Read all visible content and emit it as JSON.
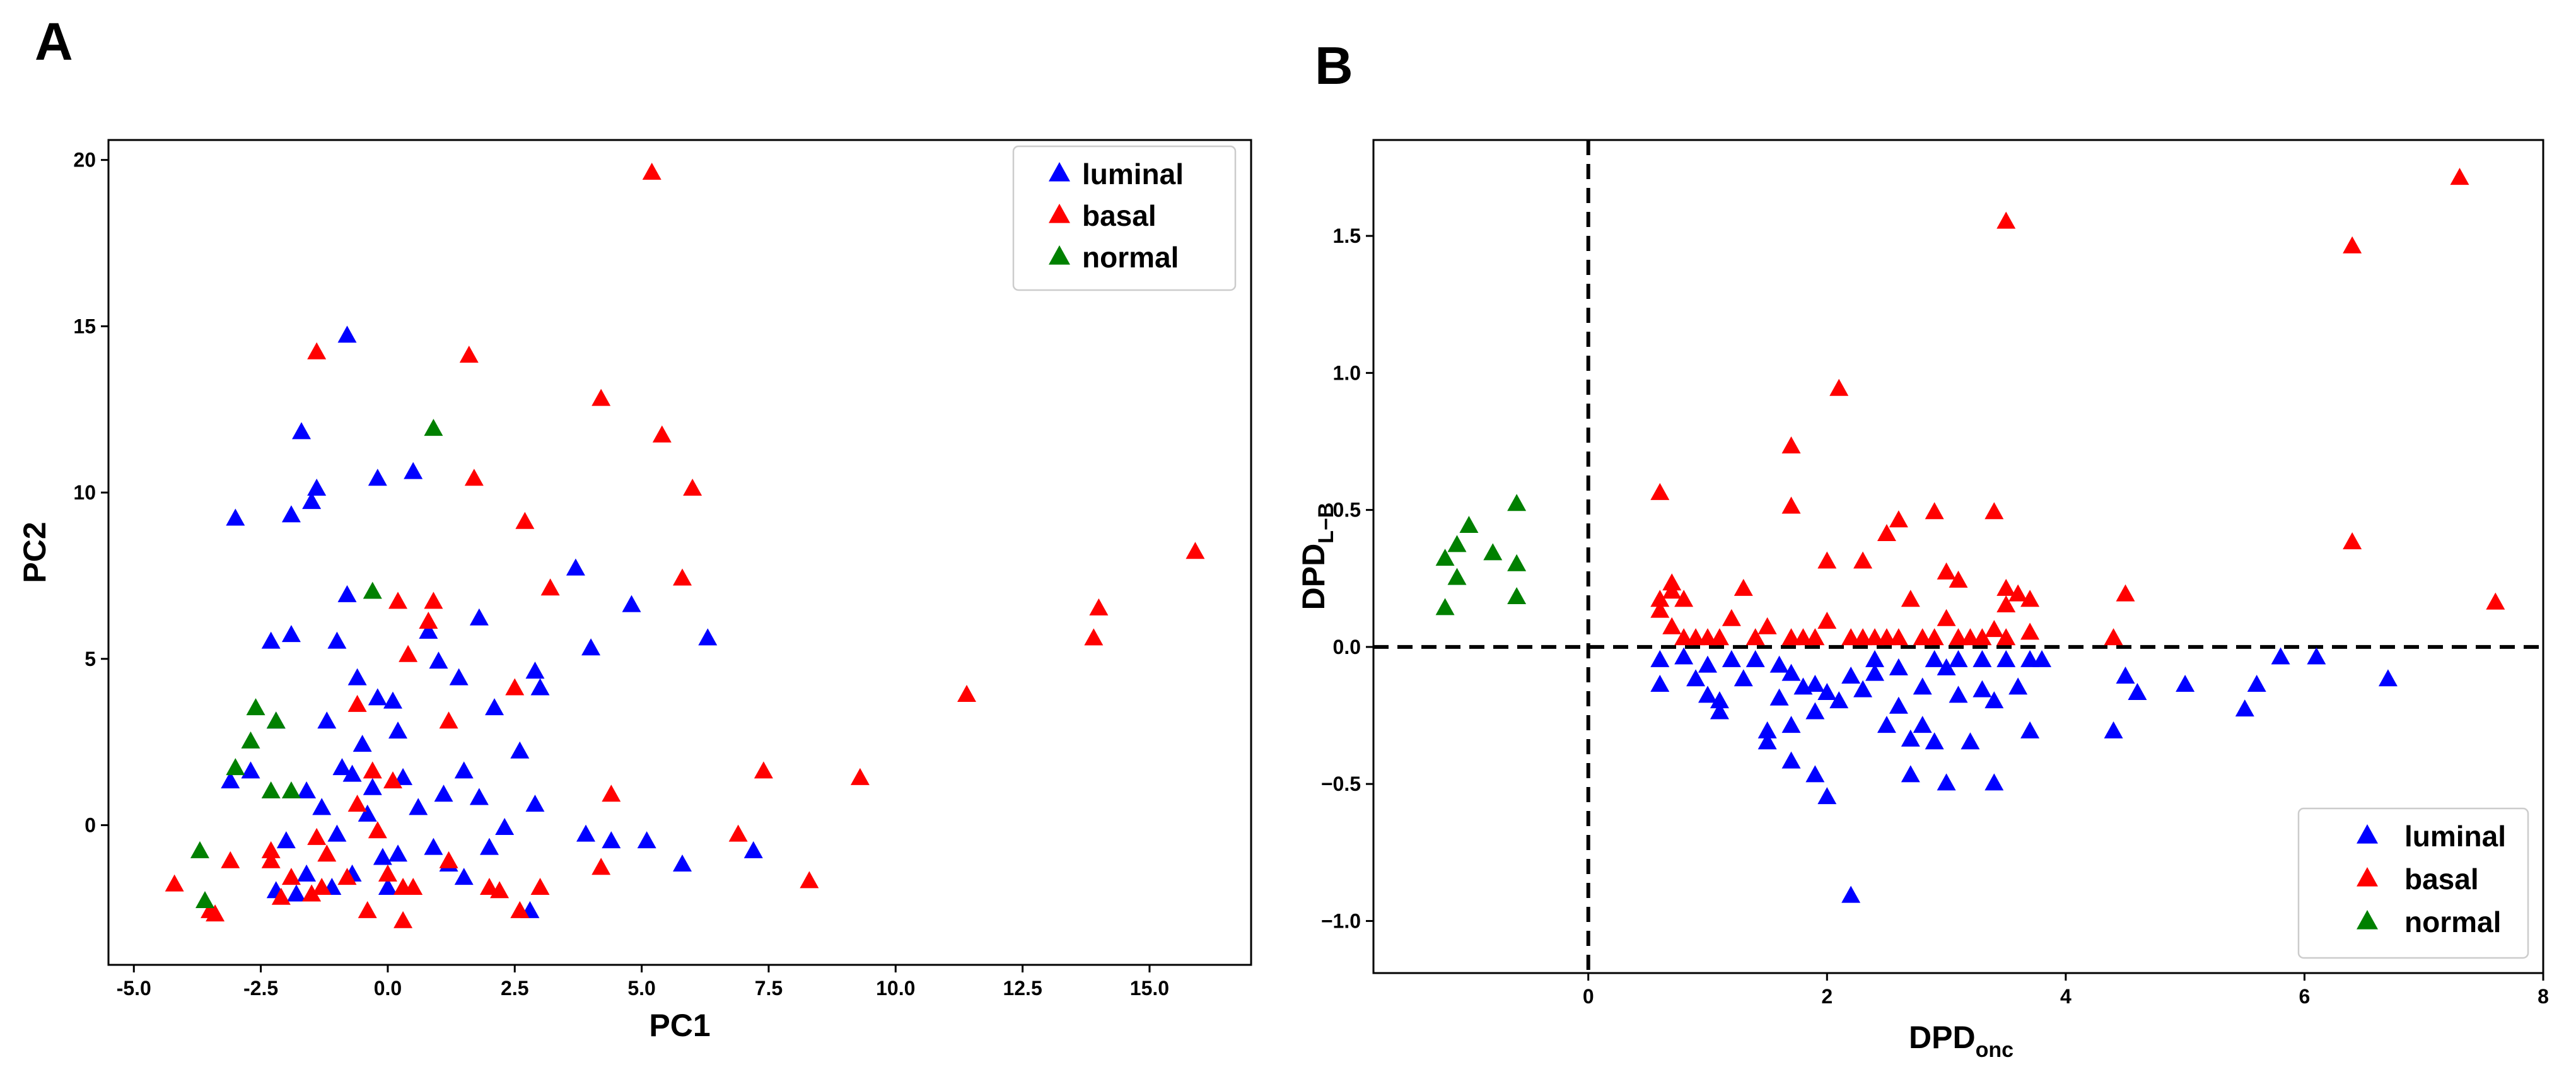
{
  "chart_data": [
    {
      "id": "A",
      "panel_label": "A",
      "type": "scatter",
      "marker": "triangle",
      "xlabel": "PC1",
      "ylabel": "PC2",
      "xlim": [
        -5.5,
        17.0
      ],
      "ylim": [
        -4.2,
        20.6
      ],
      "xticks": [
        -5.0,
        -2.5,
        0.0,
        2.5,
        5.0,
        7.5,
        10.0,
        12.5,
        15.0
      ],
      "xtick_labels": [
        "-5.0",
        "-2.5",
        "0.0",
        "2.5",
        "5.0",
        "7.5",
        "10.0",
        "12.5",
        "15.0"
      ],
      "yticks": [
        0,
        5,
        10,
        15,
        20
      ],
      "ytick_labels": [
        "0",
        "5",
        "10",
        "15",
        "20"
      ],
      "legend_position": "top-right",
      "series": [
        {
          "name": "luminal",
          "color": "#0000ff",
          "points": [
            [
              -3.1,
              1.3
            ],
            [
              -3.0,
              9.2
            ],
            [
              -2.7,
              1.6
            ],
            [
              -2.3,
              5.5
            ],
            [
              -2.2,
              3.1
            ],
            [
              -2.2,
              -2.0
            ],
            [
              -2.0,
              -0.5
            ],
            [
              -1.9,
              5.7
            ],
            [
              -1.9,
              9.3
            ],
            [
              -1.8,
              -2.1
            ],
            [
              -1.7,
              11.8
            ],
            [
              -1.6,
              1.0
            ],
            [
              -1.6,
              -1.5
            ],
            [
              -1.5,
              9.7
            ],
            [
              -1.4,
              10.1
            ],
            [
              -1.3,
              0.5
            ],
            [
              -1.2,
              3.1
            ],
            [
              -1.1,
              -1.9
            ],
            [
              -1.0,
              -0.3
            ],
            [
              -1.0,
              5.5
            ],
            [
              -0.9,
              1.7
            ],
            [
              -0.8,
              14.7
            ],
            [
              -0.8,
              6.9
            ],
            [
              -0.7,
              -1.5
            ],
            [
              -0.7,
              1.5
            ],
            [
              -0.6,
              4.4
            ],
            [
              -0.5,
              2.4
            ],
            [
              -0.4,
              0.3
            ],
            [
              -0.3,
              1.1
            ],
            [
              -0.2,
              10.4
            ],
            [
              -0.2,
              3.8
            ],
            [
              -0.1,
              -1.0
            ],
            [
              0.0,
              -1.9
            ],
            [
              0.1,
              3.7
            ],
            [
              0.2,
              -0.9
            ],
            [
              0.2,
              2.8
            ],
            [
              0.3,
              1.4
            ],
            [
              0.5,
              10.6
            ],
            [
              0.6,
              0.5
            ],
            [
              0.8,
              5.8
            ],
            [
              0.9,
              -0.7
            ],
            [
              1.0,
              4.9
            ],
            [
              1.1,
              0.9
            ],
            [
              1.2,
              -1.2
            ],
            [
              1.4,
              4.4
            ],
            [
              1.5,
              1.6
            ],
            [
              1.5,
              -1.6
            ],
            [
              1.8,
              6.2
            ],
            [
              1.8,
              0.8
            ],
            [
              2.0,
              -0.7
            ],
            [
              2.1,
              3.5
            ],
            [
              2.3,
              -0.1
            ],
            [
              2.6,
              2.2
            ],
            [
              2.8,
              -2.6
            ],
            [
              2.9,
              4.6
            ],
            [
              2.9,
              0.6
            ],
            [
              3.0,
              4.1
            ],
            [
              3.7,
              7.7
            ],
            [
              3.9,
              -0.3
            ],
            [
              4.0,
              5.3
            ],
            [
              4.4,
              -0.5
            ],
            [
              4.8,
              6.6
            ],
            [
              5.1,
              -0.5
            ],
            [
              5.8,
              -1.2
            ],
            [
              6.3,
              5.6
            ],
            [
              7.2,
              -0.8
            ]
          ]
        },
        {
          "name": "basal",
          "color": "#ff0000",
          "points": [
            [
              -4.2,
              -1.8
            ],
            [
              -3.5,
              -2.6
            ],
            [
              -3.4,
              -2.7
            ],
            [
              -3.1,
              -1.1
            ],
            [
              -2.3,
              -0.8
            ],
            [
              -2.3,
              -1.1
            ],
            [
              -2.1,
              -2.2
            ],
            [
              -1.9,
              -1.6
            ],
            [
              -1.5,
              -2.1
            ],
            [
              -1.4,
              14.2
            ],
            [
              -1.4,
              -0.4
            ],
            [
              -1.3,
              -1.9
            ],
            [
              -1.2,
              -0.9
            ],
            [
              -0.8,
              -1.6
            ],
            [
              -0.6,
              0.6
            ],
            [
              -0.6,
              3.6
            ],
            [
              -0.4,
              -2.6
            ],
            [
              -0.3,
              1.6
            ],
            [
              -0.2,
              -0.2
            ],
            [
              0.0,
              -1.5
            ],
            [
              0.1,
              1.3
            ],
            [
              0.2,
              6.7
            ],
            [
              0.3,
              -2.9
            ],
            [
              0.3,
              -1.9
            ],
            [
              0.4,
              5.1
            ],
            [
              0.5,
              -1.9
            ],
            [
              0.8,
              6.1
            ],
            [
              0.9,
              6.7
            ],
            [
              1.2,
              3.1
            ],
            [
              1.2,
              -1.1
            ],
            [
              1.6,
              14.1
            ],
            [
              1.7,
              10.4
            ],
            [
              2.0,
              -1.9
            ],
            [
              2.2,
              -2.0
            ],
            [
              2.5,
              4.1
            ],
            [
              2.6,
              -2.6
            ],
            [
              2.7,
              9.1
            ],
            [
              3.0,
              -1.9
            ],
            [
              3.2,
              7.1
            ],
            [
              4.2,
              12.8
            ],
            [
              4.2,
              -1.3
            ],
            [
              4.4,
              0.9
            ],
            [
              5.2,
              19.6
            ],
            [
              5.4,
              11.7
            ],
            [
              5.8,
              7.4
            ],
            [
              6.0,
              10.1
            ],
            [
              6.9,
              -0.3
            ],
            [
              7.4,
              1.6
            ],
            [
              8.3,
              -1.7
            ],
            [
              9.3,
              1.4
            ],
            [
              11.4,
              3.9
            ],
            [
              13.9,
              5.6
            ],
            [
              14.0,
              6.5
            ],
            [
              15.9,
              8.2
            ]
          ]
        },
        {
          "name": "normal",
          "color": "#008000",
          "points": [
            [
              -3.7,
              -0.8
            ],
            [
              -3.6,
              -2.3
            ],
            [
              -3.0,
              1.7
            ],
            [
              -2.7,
              2.5
            ],
            [
              -2.6,
              3.5
            ],
            [
              -2.3,
              1.0
            ],
            [
              -2.2,
              3.1
            ],
            [
              -1.9,
              1.0
            ],
            [
              -0.3,
              7.0
            ],
            [
              0.9,
              11.9
            ]
          ]
        }
      ]
    },
    {
      "id": "B",
      "panel_label": "B",
      "type": "scatter",
      "marker": "triangle",
      "xlabel_main": "DPD",
      "xlabel_sub": "onc",
      "ylabel_main": "DPD",
      "ylabel_sub": "L−B",
      "xlim": [
        -1.8,
        8.0
      ],
      "ylim": [
        -1.19,
        1.85
      ],
      "xticks": [
        0,
        2,
        4,
        6,
        8
      ],
      "xtick_labels": [
        "0",
        "2",
        "4",
        "6",
        "8"
      ],
      "yticks": [
        -1.0,
        -0.5,
        0.0,
        0.5,
        1.0,
        1.5
      ],
      "ytick_labels": [
        "−1.0",
        "−0.5",
        "0.0",
        "0.5",
        "1.0",
        "1.5"
      ],
      "reference_lines": {
        "x": 0,
        "y": 0,
        "style": "dashed"
      },
      "legend_position": "bottom-right",
      "series": [
        {
          "name": "luminal",
          "color": "#0000ff",
          "points": [
            [
              0.6,
              -0.05
            ],
            [
              0.6,
              -0.14
            ],
            [
              0.8,
              -0.04
            ],
            [
              0.9,
              -0.12
            ],
            [
              1.0,
              -0.07
            ],
            [
              1.0,
              -0.18
            ],
            [
              1.1,
              -0.24
            ],
            [
              1.1,
              -0.2
            ],
            [
              1.2,
              -0.05
            ],
            [
              1.3,
              -0.12
            ],
            [
              1.4,
              -0.05
            ],
            [
              1.5,
              -0.35
            ],
            [
              1.5,
              -0.31
            ],
            [
              1.6,
              -0.07
            ],
            [
              1.6,
              -0.19
            ],
            [
              1.7,
              -0.1
            ],
            [
              1.7,
              -0.42
            ],
            [
              1.7,
              -0.29
            ],
            [
              1.8,
              -0.15
            ],
            [
              1.9,
              -0.47
            ],
            [
              1.9,
              -0.14
            ],
            [
              1.9,
              -0.24
            ],
            [
              2.0,
              -0.17
            ],
            [
              2.0,
              -0.55
            ],
            [
              2.1,
              -0.2
            ],
            [
              2.2,
              -0.91
            ],
            [
              2.2,
              -0.11
            ],
            [
              2.3,
              -0.16
            ],
            [
              2.4,
              -0.05
            ],
            [
              2.4,
              -0.1
            ],
            [
              2.5,
              -0.29
            ],
            [
              2.6,
              -0.08
            ],
            [
              2.6,
              -0.22
            ],
            [
              2.7,
              -0.47
            ],
            [
              2.7,
              -0.34
            ],
            [
              2.8,
              -0.15
            ],
            [
              2.8,
              -0.29
            ],
            [
              2.9,
              -0.05
            ],
            [
              2.9,
              -0.35
            ],
            [
              3.0,
              -0.5
            ],
            [
              3.0,
              -0.08
            ],
            [
              3.1,
              -0.18
            ],
            [
              3.1,
              -0.05
            ],
            [
              3.2,
              -0.35
            ],
            [
              3.3,
              -0.05
            ],
            [
              3.3,
              -0.16
            ],
            [
              3.4,
              -0.5
            ],
            [
              3.4,
              -0.2
            ],
            [
              3.5,
              -0.05
            ],
            [
              3.6,
              -0.15
            ],
            [
              3.7,
              -0.05
            ],
            [
              3.7,
              -0.31
            ],
            [
              3.8,
              -0.05
            ],
            [
              4.4,
              -0.31
            ],
            [
              4.5,
              -0.11
            ],
            [
              4.6,
              -0.17
            ],
            [
              5.0,
              -0.14
            ],
            [
              5.5,
              -0.23
            ],
            [
              5.6,
              -0.14
            ],
            [
              5.8,
              -0.04
            ],
            [
              6.1,
              -0.04
            ],
            [
              6.7,
              -0.12
            ]
          ]
        },
        {
          "name": "basal",
          "color": "#ff0000",
          "points": [
            [
              0.6,
              0.56
            ],
            [
              0.6,
              0.17
            ],
            [
              0.6,
              0.13
            ],
            [
              0.7,
              0.07
            ],
            [
              0.7,
              0.23
            ],
            [
              0.7,
              0.2
            ],
            [
              0.8,
              0.17
            ],
            [
              0.8,
              0.03
            ],
            [
              0.9,
              0.03
            ],
            [
              1.0,
              0.03
            ],
            [
              1.1,
              0.03
            ],
            [
              1.2,
              0.1
            ],
            [
              1.3,
              0.21
            ],
            [
              1.4,
              0.03
            ],
            [
              1.5,
              0.07
            ],
            [
              1.7,
              0.03
            ],
            [
              1.7,
              0.73
            ],
            [
              1.7,
              0.51
            ],
            [
              1.8,
              0.03
            ],
            [
              1.9,
              0.03
            ],
            [
              2.0,
              0.31
            ],
            [
              2.0,
              0.09
            ],
            [
              2.1,
              0.94
            ],
            [
              2.2,
              0.03
            ],
            [
              2.3,
              0.31
            ],
            [
              2.3,
              0.03
            ],
            [
              2.4,
              0.03
            ],
            [
              2.5,
              0.41
            ],
            [
              2.5,
              0.03
            ],
            [
              2.6,
              0.46
            ],
            [
              2.6,
              0.03
            ],
            [
              2.7,
              0.17
            ],
            [
              2.8,
              0.03
            ],
            [
              2.9,
              0.49
            ],
            [
              2.9,
              0.03
            ],
            [
              3.0,
              0.27
            ],
            [
              3.0,
              0.1
            ],
            [
              3.1,
              0.03
            ],
            [
              3.1,
              0.24
            ],
            [
              3.2,
              0.03
            ],
            [
              3.3,
              0.03
            ],
            [
              3.4,
              0.49
            ],
            [
              3.4,
              0.06
            ],
            [
              3.5,
              0.21
            ],
            [
              3.5,
              0.15
            ],
            [
              3.5,
              0.03
            ],
            [
              3.5,
              1.55
            ],
            [
              3.6,
              0.19
            ],
            [
              3.7,
              0.17
            ],
            [
              3.7,
              0.05
            ],
            [
              4.4,
              0.03
            ],
            [
              4.5,
              0.19
            ],
            [
              6.4,
              1.46
            ],
            [
              6.4,
              0.38
            ],
            [
              7.3,
              1.71
            ],
            [
              7.6,
              0.16
            ]
          ]
        },
        {
          "name": "normal",
          "color": "#008000",
          "points": [
            [
              -1.2,
              0.32
            ],
            [
              -1.2,
              0.14
            ],
            [
              -1.1,
              0.37
            ],
            [
              -1.1,
              0.25
            ],
            [
              -1.0,
              0.44
            ],
            [
              -0.8,
              0.34
            ],
            [
              -0.6,
              0.52
            ],
            [
              -0.6,
              0.3
            ],
            [
              -0.6,
              0.18
            ]
          ]
        }
      ]
    }
  ]
}
